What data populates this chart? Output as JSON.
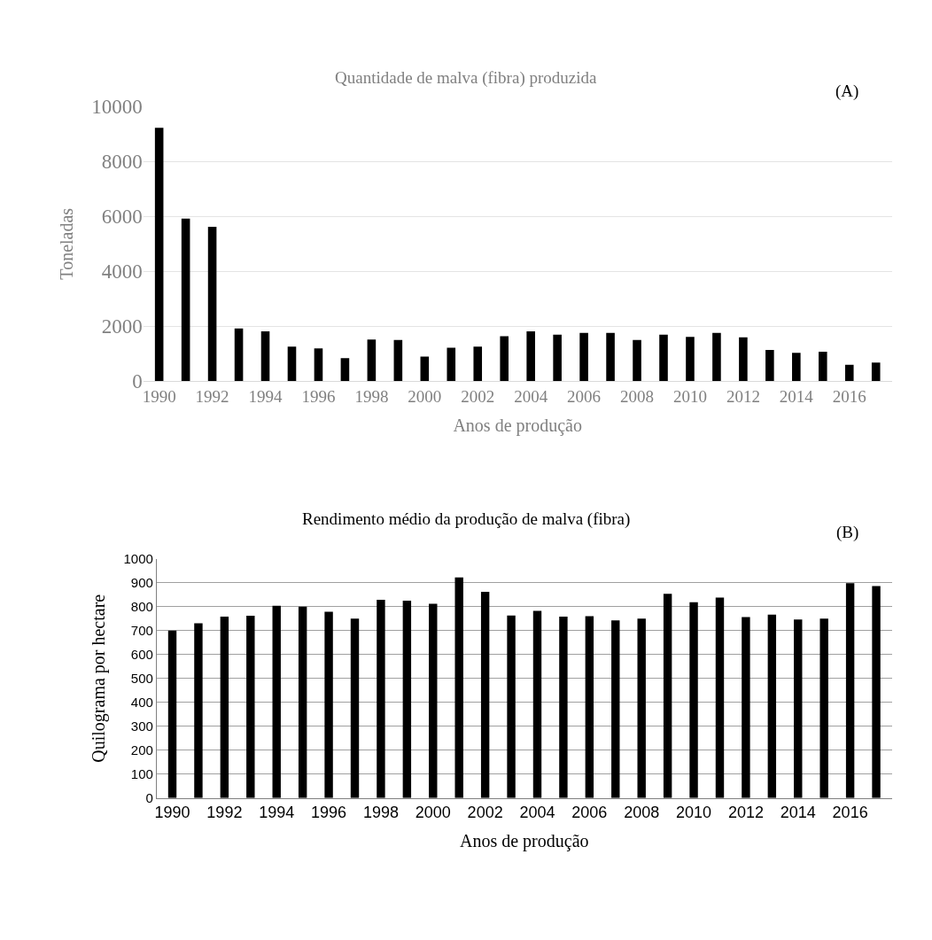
{
  "chart_data": [
    {
      "type": "bar",
      "title": "Quantidade de malva (fibra) produzida",
      "xlabel": "Anos de produção",
      "ylabel": "Toneladas",
      "annotations": [
        "(A)"
      ],
      "categories": [
        "1990",
        null,
        "1992",
        null,
        "1994",
        null,
        "1996",
        null,
        "1998",
        null,
        "2000",
        null,
        "2002",
        null,
        "2004",
        null,
        "2006",
        null,
        "2008",
        null,
        "2010",
        null,
        "2012",
        null,
        "2014",
        null,
        "2016",
        null
      ],
      "values": [
        9220,
        5920,
        5620,
        1920,
        1820,
        1260,
        1200,
        840,
        1520,
        1500,
        900,
        1220,
        1260,
        1640,
        1820,
        1700,
        1760,
        1760,
        1500,
        1700,
        1620,
        1760,
        1600,
        1140,
        1040,
        1080,
        600,
        680
      ],
      "color": "#000000",
      "ylim": [
        0,
        10000
      ],
      "yticks": [
        0,
        2000,
        4000,
        6000,
        8000,
        10000
      ],
      "grid": "y"
    },
    {
      "type": "bar",
      "title": "Rendimento médio da produção de malva (fibra)",
      "xlabel": "Anos de produção",
      "ylabel": "Quilograma por hectare",
      "annotations": [
        "(B)"
      ],
      "categories": [
        "1990",
        null,
        "1992",
        null,
        "1994",
        null,
        "1996",
        null,
        "1998",
        null,
        "2000",
        null,
        "2002",
        null,
        "2004",
        null,
        "2006",
        null,
        "2008",
        null,
        "2010",
        null,
        "2012",
        null,
        "2014",
        null,
        "2016",
        null
      ],
      "values": [
        700,
        730,
        758,
        762,
        803,
        800,
        778,
        750,
        828,
        825,
        812,
        922,
        862,
        763,
        782,
        758,
        760,
        742,
        750,
        853,
        818,
        838,
        756,
        766,
        746,
        750,
        898,
        886
      ],
      "color": "#000000",
      "ylim": [
        0,
        1000
      ],
      "yticks": [
        0,
        100,
        200,
        300,
        400,
        500,
        600,
        700,
        800,
        900,
        1000
      ],
      "grid": "y"
    }
  ]
}
